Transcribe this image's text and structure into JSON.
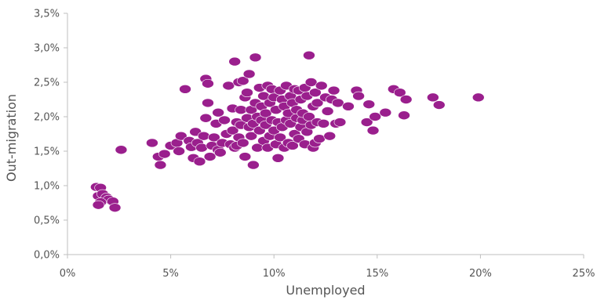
{
  "chart_data": {
    "type": "scatter",
    "xlabel": "Unemployed",
    "ylabel": "Out-migration",
    "xlim": [
      0,
      25
    ],
    "ylim": [
      0,
      3.5
    ],
    "x_ticks": [
      {
        "value": 0,
        "label": "0%"
      },
      {
        "value": 5,
        "label": "5%"
      },
      {
        "value": 10,
        "label": "10%"
      },
      {
        "value": 15,
        "label": "15%"
      },
      {
        "value": 20,
        "label": "20%"
      },
      {
        "value": 25,
        "label": "25%"
      }
    ],
    "y_ticks": [
      {
        "value": 0,
        "label": "0,0%"
      },
      {
        "value": 0.5,
        "label": "0,5%"
      },
      {
        "value": 1.0,
        "label": "1,0%"
      },
      {
        "value": 1.5,
        "label": "1,5%"
      },
      {
        "value": 2.0,
        "label": "2,0%"
      },
      {
        "value": 2.5,
        "label": "2,5%"
      },
      {
        "value": 3.0,
        "label": "3,0%"
      },
      {
        "value": 3.5,
        "label": "3,5%"
      }
    ],
    "grid": false,
    "marker_color": "#9a1f8d",
    "series": [
      {
        "points": [
          [
            1.4,
            0.98
          ],
          [
            1.6,
            0.97
          ],
          [
            1.5,
            0.85
          ],
          [
            1.7,
            0.88
          ],
          [
            1.9,
            0.83
          ],
          [
            2.0,
            0.8
          ],
          [
            1.6,
            0.76
          ],
          [
            1.5,
            0.72
          ],
          [
            2.2,
            0.77
          ],
          [
            2.3,
            0.68
          ],
          [
            2.6,
            1.52
          ],
          [
            4.1,
            1.62
          ],
          [
            4.4,
            1.42
          ],
          [
            4.5,
            1.3
          ],
          [
            4.7,
            1.46
          ],
          [
            5.0,
            1.58
          ],
          [
            5.3,
            1.62
          ],
          [
            5.5,
            1.72
          ],
          [
            5.4,
            1.5
          ],
          [
            5.7,
            2.4
          ],
          [
            5.9,
            1.65
          ],
          [
            6.0,
            1.56
          ],
          [
            6.1,
            1.4
          ],
          [
            6.2,
            1.78
          ],
          [
            6.3,
            1.62
          ],
          [
            6.4,
            1.35
          ],
          [
            6.5,
            1.55
          ],
          [
            6.6,
            1.72
          ],
          [
            6.7,
            2.55
          ],
          [
            6.8,
            2.48
          ],
          [
            6.7,
            1.98
          ],
          [
            6.8,
            2.2
          ],
          [
            6.9,
            1.42
          ],
          [
            7.0,
            1.58
          ],
          [
            7.1,
            1.7
          ],
          [
            7.2,
            1.9
          ],
          [
            7.3,
            1.52
          ],
          [
            7.3,
            2.06
          ],
          [
            7.4,
            1.48
          ],
          [
            7.5,
            1.62
          ],
          [
            7.6,
            1.95
          ],
          [
            7.7,
            1.75
          ],
          [
            7.8,
            2.45
          ],
          [
            7.9,
            1.6
          ],
          [
            8.0,
            1.8
          ],
          [
            8.0,
            2.12
          ],
          [
            8.1,
            2.8
          ],
          [
            8.1,
            1.55
          ],
          [
            8.2,
            1.92
          ],
          [
            8.2,
            1.58
          ],
          [
            8.3,
            2.5
          ],
          [
            8.3,
            1.7
          ],
          [
            8.4,
            1.88
          ],
          [
            8.4,
            2.1
          ],
          [
            8.5,
            1.62
          ],
          [
            8.5,
            2.52
          ],
          [
            8.6,
            1.42
          ],
          [
            8.6,
            2.28
          ],
          [
            8.7,
            1.98
          ],
          [
            8.7,
            2.35
          ],
          [
            8.8,
            1.85
          ],
          [
            8.8,
            2.62
          ],
          [
            8.9,
            2.1
          ],
          [
            8.9,
            1.72
          ],
          [
            9.0,
            1.3
          ],
          [
            9.0,
            1.9
          ],
          [
            9.1,
            2.86
          ],
          [
            9.1,
            2.2
          ],
          [
            9.2,
            1.55
          ],
          [
            9.2,
            2.0
          ],
          [
            9.3,
            1.8
          ],
          [
            9.3,
            2.42
          ],
          [
            9.4,
            1.95
          ],
          [
            9.4,
            2.15
          ],
          [
            9.5,
            2.3
          ],
          [
            9.5,
            1.65
          ],
          [
            9.6,
            2.05
          ],
          [
            9.6,
            1.88
          ],
          [
            9.7,
            2.45
          ],
          [
            9.7,
            1.55
          ],
          [
            9.8,
            2.2
          ],
          [
            9.8,
            1.72
          ],
          [
            9.9,
            2.4
          ],
          [
            9.9,
            1.95
          ],
          [
            10.0,
            1.8
          ],
          [
            10.0,
            2.28
          ],
          [
            10.1,
            1.6
          ],
          [
            10.1,
            2.1
          ],
          [
            10.2,
            1.4
          ],
          [
            10.2,
            1.92
          ],
          [
            10.3,
            1.7
          ],
          [
            10.3,
            2.38
          ],
          [
            10.4,
            1.85
          ],
          [
            10.4,
            2.25
          ],
          [
            10.5,
            1.55
          ],
          [
            10.5,
            2.15
          ],
          [
            10.6,
            1.95
          ],
          [
            10.6,
            2.45
          ],
          [
            10.7,
            1.62
          ],
          [
            10.7,
            2.05
          ],
          [
            10.8,
            1.9
          ],
          [
            10.8,
            2.3
          ],
          [
            10.9,
            1.58
          ],
          [
            10.9,
            2.2
          ],
          [
            11.0,
            1.75
          ],
          [
            11.0,
            2.4
          ],
          [
            11.1,
            1.98
          ],
          [
            11.1,
            2.1
          ],
          [
            11.2,
            1.68
          ],
          [
            11.2,
            2.38
          ],
          [
            11.3,
            1.85
          ],
          [
            11.3,
            2.25
          ],
          [
            11.4,
            1.95
          ],
          [
            11.4,
            2.05
          ],
          [
            11.5,
            1.6
          ],
          [
            11.5,
            2.42
          ],
          [
            11.6,
            1.78
          ],
          [
            11.6,
            2.3
          ],
          [
            11.7,
            2.89
          ],
          [
            11.7,
            2.0
          ],
          [
            11.8,
            2.5
          ],
          [
            11.8,
            1.88
          ],
          [
            11.9,
            1.55
          ],
          [
            11.9,
            2.15
          ],
          [
            12.0,
            1.62
          ],
          [
            12.0,
            2.35
          ],
          [
            12.1,
            1.92
          ],
          [
            12.1,
            2.2
          ],
          [
            12.2,
            1.68
          ],
          [
            12.3,
            2.45
          ],
          [
            12.4,
            1.9
          ],
          [
            12.5,
            2.28
          ],
          [
            12.6,
            2.08
          ],
          [
            12.7,
            1.72
          ],
          [
            12.8,
            2.25
          ],
          [
            12.9,
            2.38
          ],
          [
            13.0,
            1.9
          ],
          [
            13.1,
            2.2
          ],
          [
            13.2,
            1.92
          ],
          [
            13.6,
            2.15
          ],
          [
            14.0,
            2.38
          ],
          [
            14.1,
            2.3
          ],
          [
            14.5,
            1.92
          ],
          [
            14.6,
            2.18
          ],
          [
            14.8,
            1.8
          ],
          [
            14.9,
            2.0
          ],
          [
            15.4,
            2.06
          ],
          [
            15.8,
            2.4
          ],
          [
            16.1,
            2.35
          ],
          [
            16.3,
            2.02
          ],
          [
            16.4,
            2.25
          ],
          [
            17.7,
            2.28
          ],
          [
            18.0,
            2.17
          ],
          [
            19.9,
            2.28
          ]
        ]
      }
    ]
  }
}
